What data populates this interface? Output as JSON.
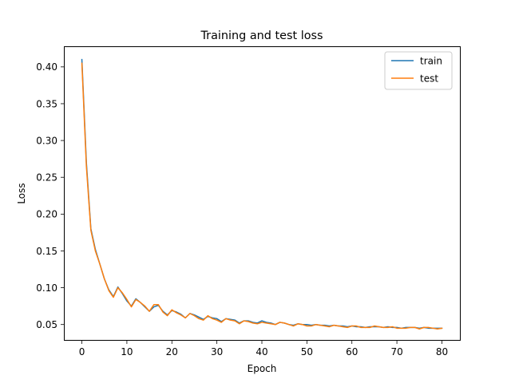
{
  "chart_data": {
    "type": "line",
    "title": "Training and test loss",
    "xlabel": "Epoch",
    "ylabel": "Loss",
    "xlim": [
      -4,
      84
    ],
    "ylim": [
      0.028,
      0.428
    ],
    "xticks": [
      0,
      10,
      20,
      30,
      40,
      50,
      60,
      70,
      80
    ],
    "yticks": [
      0.05,
      0.1,
      0.15,
      0.2,
      0.25,
      0.3,
      0.35,
      0.4
    ],
    "ytick_labels": [
      "0.05",
      "0.10",
      "0.15",
      "0.20",
      "0.25",
      "0.30",
      "0.35",
      "0.40"
    ],
    "grid": false,
    "legend_position": "top-right",
    "x": [
      0,
      1,
      2,
      3,
      4,
      5,
      6,
      7,
      8,
      9,
      10,
      11,
      12,
      13,
      14,
      15,
      16,
      17,
      18,
      19,
      20,
      21,
      22,
      23,
      24,
      25,
      26,
      27,
      28,
      29,
      30,
      31,
      32,
      33,
      34,
      35,
      36,
      37,
      38,
      39,
      40,
      41,
      42,
      43,
      44,
      45,
      46,
      47,
      48,
      49,
      50,
      51,
      52,
      53,
      54,
      55,
      56,
      57,
      58,
      59,
      60,
      61,
      62,
      63,
      64,
      65,
      66,
      67,
      68,
      69,
      70,
      71,
      72,
      73,
      74,
      75,
      76,
      77,
      78,
      79,
      80
    ],
    "series": [
      {
        "name": "train",
        "color": "#1f77b4",
        "values": [
          0.41,
          0.27,
          0.18,
          0.152,
          0.132,
          0.112,
          0.097,
          0.088,
          0.101,
          0.092,
          0.082,
          0.075,
          0.085,
          0.08,
          0.074,
          0.068,
          0.074,
          0.076,
          0.068,
          0.063,
          0.069,
          0.067,
          0.064,
          0.059,
          0.065,
          0.063,
          0.06,
          0.057,
          0.061,
          0.059,
          0.058,
          0.054,
          0.058,
          0.057,
          0.056,
          0.052,
          0.055,
          0.055,
          0.053,
          0.052,
          0.055,
          0.053,
          0.052,
          0.05,
          0.053,
          0.052,
          0.05,
          0.049,
          0.051,
          0.05,
          0.05,
          0.049,
          0.05,
          0.049,
          0.049,
          0.048,
          0.049,
          0.048,
          0.048,
          0.047,
          0.048,
          0.047,
          0.047,
          0.046,
          0.047,
          0.047,
          0.047,
          0.046,
          0.047,
          0.046,
          0.046,
          0.045,
          0.046,
          0.046,
          0.046,
          0.045,
          0.046,
          0.045,
          0.045,
          0.045,
          0.045
        ]
      },
      {
        "name": "test",
        "color": "#ff7f0e",
        "values": [
          0.405,
          0.265,
          0.178,
          0.15,
          0.132,
          0.112,
          0.096,
          0.087,
          0.1,
          0.093,
          0.084,
          0.074,
          0.084,
          0.08,
          0.075,
          0.068,
          0.077,
          0.077,
          0.067,
          0.062,
          0.07,
          0.066,
          0.063,
          0.059,
          0.065,
          0.062,
          0.058,
          0.056,
          0.062,
          0.058,
          0.056,
          0.053,
          0.058,
          0.056,
          0.055,
          0.051,
          0.055,
          0.054,
          0.052,
          0.051,
          0.053,
          0.052,
          0.051,
          0.05,
          0.053,
          0.052,
          0.05,
          0.048,
          0.051,
          0.05,
          0.048,
          0.048,
          0.05,
          0.049,
          0.048,
          0.047,
          0.049,
          0.048,
          0.047,
          0.046,
          0.048,
          0.048,
          0.046,
          0.046,
          0.046,
          0.048,
          0.047,
          0.046,
          0.046,
          0.047,
          0.045,
          0.045,
          0.045,
          0.046,
          0.046,
          0.044,
          0.046,
          0.046,
          0.045,
          0.044,
          0.045
        ]
      }
    ]
  }
}
